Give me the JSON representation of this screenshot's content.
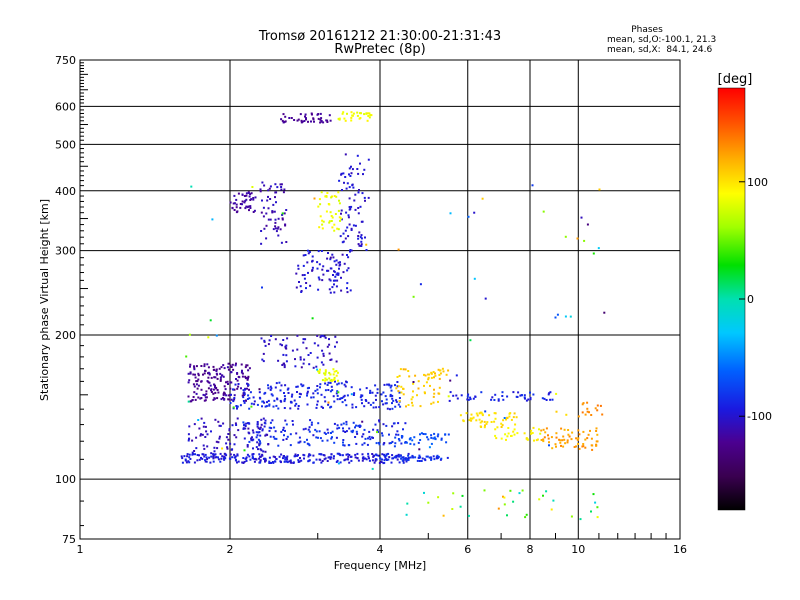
{
  "chart_data": {
    "type": "scatter",
    "title": "Tromsø 20161212 21:30:00-21:31:43",
    "subtitle": "RwPretec (8p)",
    "xlabel": "Frequency [MHz]",
    "ylabel": "Stationary phase Virtual Height [km]",
    "x_scale": "log",
    "y_scale": "log",
    "xlim": [
      1,
      16
    ],
    "ylim": [
      75,
      750
    ],
    "x_ticks": [
      1,
      2,
      4,
      6,
      8,
      10,
      16
    ],
    "y_ticks": [
      75,
      100,
      200,
      300,
      400,
      500,
      600,
      750
    ],
    "grid": true,
    "phases": {
      "heading": "Phases",
      "o_stats": "mean, sd,O:-100.1, 21.3",
      "x_stats": "mean, sd,X:  84.1, 24.6"
    },
    "colorbar": {
      "label": "[deg]",
      "range": [
        -180,
        180
      ],
      "ticks": [
        -100,
        0,
        100
      ],
      "colormap": "rainbow"
    },
    "clusters": [
      {
        "f": [
          1.65,
          2.2
        ],
        "h": [
          145,
          175
        ],
        "phase": [
          -130,
          -110
        ],
        "n": 180
      },
      {
        "f": [
          1.65,
          2.4
        ],
        "h": [
          110,
          135
        ],
        "phase": [
          -115,
          -95
        ],
        "n": 110
      },
      {
        "f": [
          1.6,
          4.6
        ],
        "h": [
          108,
          113
        ],
        "phase": [
          -105,
          -85
        ],
        "n": 260
      },
      {
        "f": [
          4.0,
          5.6
        ],
        "h": [
          109,
          112
        ],
        "phase": [
          -95,
          -75
        ],
        "n": 60
      },
      {
        "f": [
          2.0,
          4.4
        ],
        "h": [
          140,
          160
        ],
        "phase": [
          -100,
          -80
        ],
        "n": 220
      },
      {
        "f": [
          2.1,
          4.5
        ],
        "h": [
          117,
          133
        ],
        "phase": [
          -100,
          -75
        ],
        "n": 170
      },
      {
        "f": [
          2.3,
          3.3
        ],
        "h": [
          170,
          200
        ],
        "phase": [
          -115,
          -95
        ],
        "n": 70
      },
      {
        "f": [
          2.0,
          2.25
        ],
        "h": [
          360,
          400
        ],
        "phase": [
          -125,
          -110
        ],
        "n": 45
      },
      {
        "f": [
          2.3,
          2.6
        ],
        "h": [
          310,
          420
        ],
        "phase": [
          -120,
          -100
        ],
        "n": 60
      },
      {
        "f": [
          2.7,
          3.5
        ],
        "h": [
          245,
          300
        ],
        "phase": [
          -110,
          -90
        ],
        "n": 90
      },
      {
        "f": [
          3.3,
          3.8
        ],
        "h": [
          300,
          480
        ],
        "phase": [
          -110,
          -90
        ],
        "n": 80
      },
      {
        "f": [
          2.5,
          3.2
        ],
        "h": [
          555,
          580
        ],
        "phase": [
          -125,
          -115
        ],
        "n": 45
      },
      {
        "f": [
          3.3,
          3.85
        ],
        "h": [
          560,
          585
        ],
        "phase": [
          80,
          95
        ],
        "n": 30
      },
      {
        "f": [
          3.0,
          3.35
        ],
        "h": [
          330,
          400
        ],
        "phase": [
          75,
          95
        ],
        "n": 40
      },
      {
        "f": [
          3.0,
          3.3
        ],
        "h": [
          160,
          170
        ],
        "phase": [
          75,
          95
        ],
        "n": 30
      },
      {
        "f": [
          4.3,
          5.3
        ],
        "h": [
          140,
          170
        ],
        "phase": [
          100,
          120
        ],
        "n": 50
      },
      {
        "f": [
          5.0,
          5.5
        ],
        "h": [
          162,
          170
        ],
        "phase": [
          100,
          115
        ],
        "n": 15
      },
      {
        "f": [
          5.8,
          7.6
        ],
        "h": [
          128,
          138
        ],
        "phase": [
          95,
          110
        ],
        "n": 50
      },
      {
        "f": [
          6.8,
          8.4
        ],
        "h": [
          120,
          128
        ],
        "phase": [
          80,
          100
        ],
        "n": 30
      },
      {
        "f": [
          8.4,
          11.0
        ],
        "h": [
          115,
          128
        ],
        "phase": [
          115,
          135
        ],
        "n": 65
      },
      {
        "f": [
          10.0,
          11.2
        ],
        "h": [
          135,
          145
        ],
        "phase": [
          125,
          140
        ],
        "n": 15
      },
      {
        "f": [
          4.2,
          5.5
        ],
        "h": [
          118,
          125
        ],
        "phase": [
          -80,
          -60
        ],
        "n": 40
      },
      {
        "f": [
          5.5,
          9.0
        ],
        "h": [
          145,
          152
        ],
        "phase": [
          -100,
          -80
        ],
        "n": 50
      },
      {
        "f": [
          4.5,
          11.0
        ],
        "h": [
          82,
          95
        ],
        "phase": [
          -20,
          130
        ],
        "n": 35
      },
      {
        "f": [
          1.6,
          12.0
        ],
        "h": [
          100,
          420
        ],
        "phase": [
          -140,
          130
        ],
        "n": 70
      }
    ]
  }
}
